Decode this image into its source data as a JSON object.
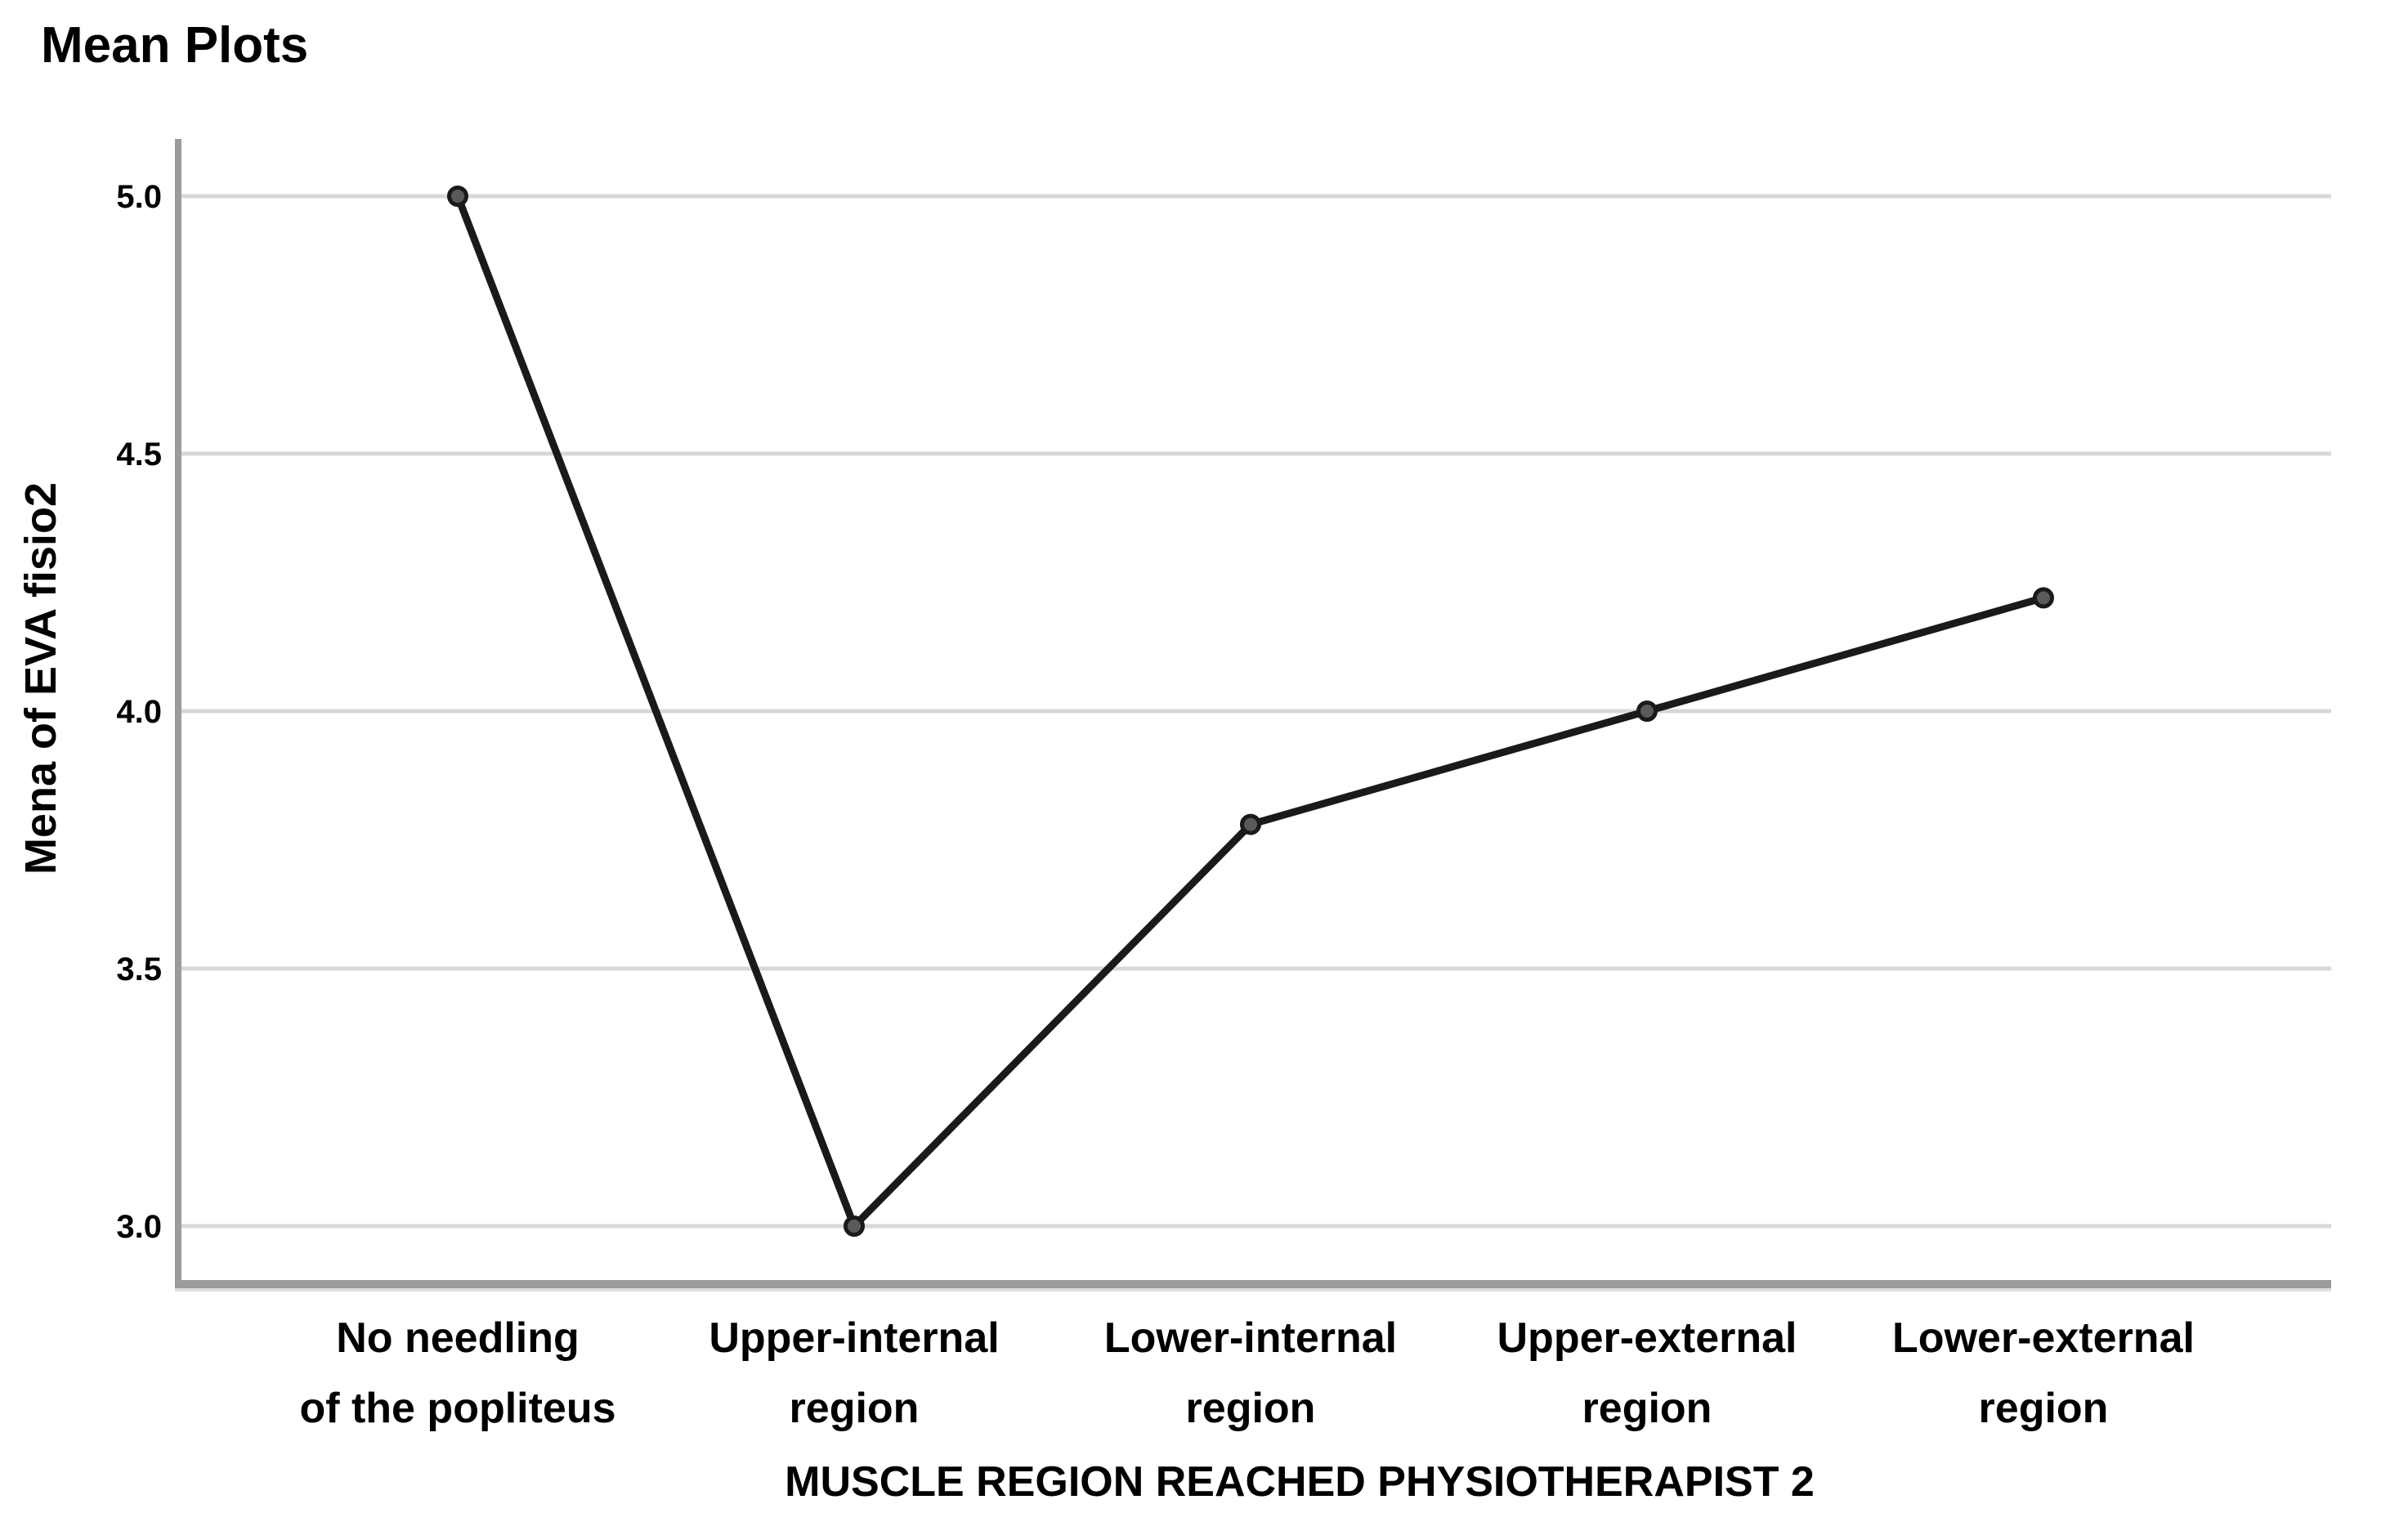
{
  "chart_data": {
    "type": "line",
    "title": "Mean Plots",
    "xlabel": "MUSCLE REGION REACHED PHYSIOTHERAPIST 2",
    "ylabel": "Mena of EVA fisio2",
    "categories": [
      "No needling of the popliteus",
      "Upper-internal region",
      "Lower-internal region",
      "Upper-external region",
      "Lower-external region"
    ],
    "category_lines": [
      [
        "No needling",
        "of the popliteus"
      ],
      [
        "Upper-internal",
        "region"
      ],
      [
        "Lower-internal",
        "region"
      ],
      [
        "Upper-external",
        "region"
      ],
      [
        "Lower-external",
        "region"
      ]
    ],
    "values": [
      5.0,
      3.0,
      3.78,
      4.0,
      4.22
    ],
    "yticks": [
      5.0,
      4.5,
      4.0,
      3.5,
      3.0
    ],
    "ytick_labels": [
      "5.0",
      "4.5",
      "4.0",
      "3.5",
      "3.0"
    ],
    "ylim": [
      2.89,
      5.11
    ],
    "grid": "horizontal",
    "legend": "none",
    "colors": {
      "line": "#1a1a1a",
      "marker_fill": "#5a5a5a",
      "marker_stroke": "#1a1a1a",
      "gridline": "#d8d8d8",
      "axis": "#9b9b9b",
      "axis_shadow": "#dedede",
      "text": "#000000",
      "background": "#ffffff"
    }
  }
}
